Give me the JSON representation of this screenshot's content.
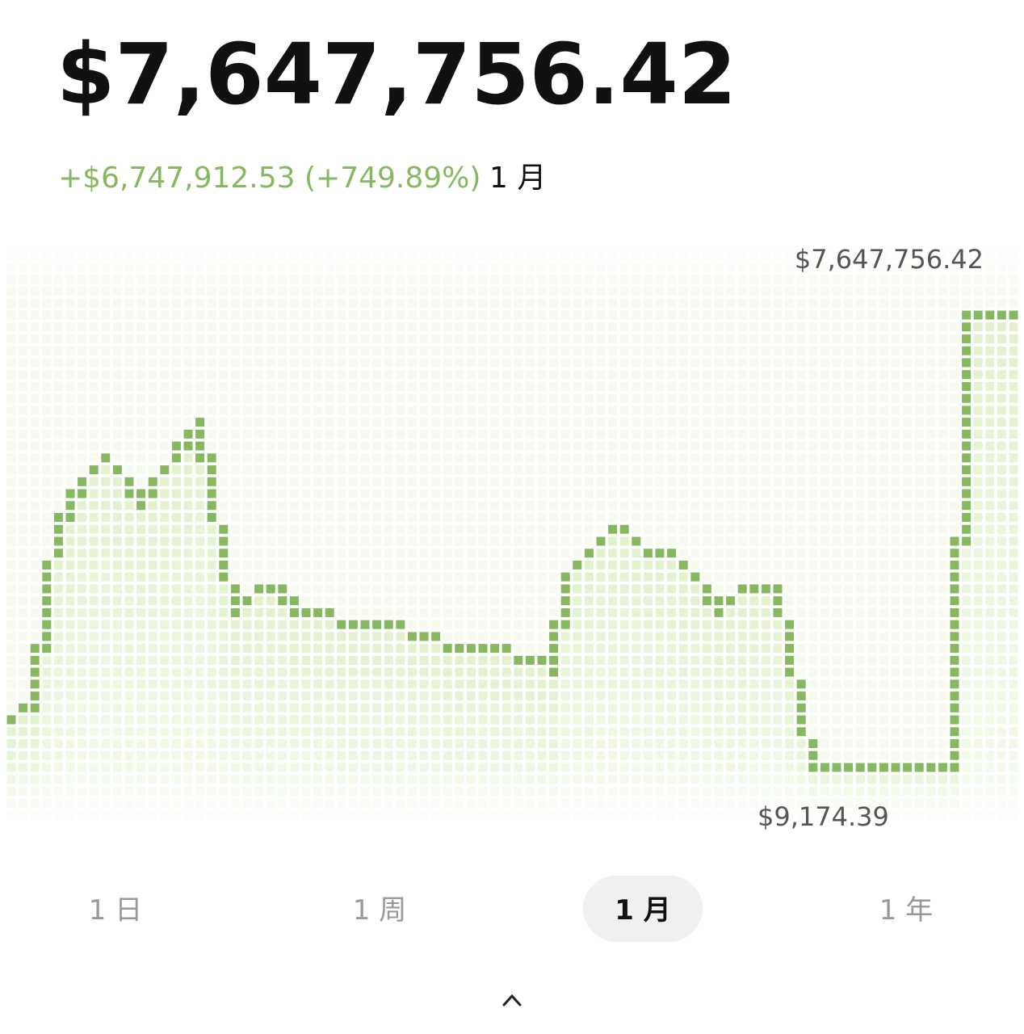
{
  "header": {
    "balance": "$7,647,756.42",
    "change": "+$6,747,912.53 (+749.89%)",
    "period": "1 月"
  },
  "chart_data": {
    "type": "line",
    "color": "#86b95f",
    "max_label": "$7,647,756.42",
    "min_label": "$9,174.39",
    "values": [
      827600,
      1004900,
      1004900,
      3010000,
      4019400,
      4401400,
      4810600,
      5015200,
      5219800,
      5015200,
      4810600,
      4401400,
      4810600,
      5015200,
      5219800,
      5601700,
      5819900,
      4646900,
      3623900,
      2600800,
      2846400,
      3010000,
      3010000,
      3010000,
      2641800,
      2641800,
      2641800,
      2600800,
      2396200,
      2396200,
      2396200,
      2396200,
      2396200,
      2396200,
      2205300,
      2205300,
      2205300,
      2000700,
      2000700,
      2000700,
      2000700,
      2000700,
      2000700,
      1809700,
      1809700,
      1809700,
      1605100,
      3214600,
      3419200,
      3610200,
      3828500,
      4019400,
      4019400,
      3814700,
      3610200,
      3610200,
      3610200,
      3419200,
      3214600,
      3010000,
      2600800,
      2805400,
      3010000,
      3010000,
      3010000,
      3010000,
      1987000,
      1032200,
      9174.39,
      9174.39,
      9174.39,
      9174.39,
      9174.39,
      9174.39,
      9174.39,
      9174.39,
      9174.39,
      9174.39,
      9174.39,
      9174.39,
      9174.39,
      7647756.42,
      7647756.42,
      7647756.42,
      7647756.42,
      7647756.42
    ]
  },
  "tabs": [
    "1 日",
    "1 周",
    "1 月",
    "1 年"
  ],
  "selected_tab": 2
}
